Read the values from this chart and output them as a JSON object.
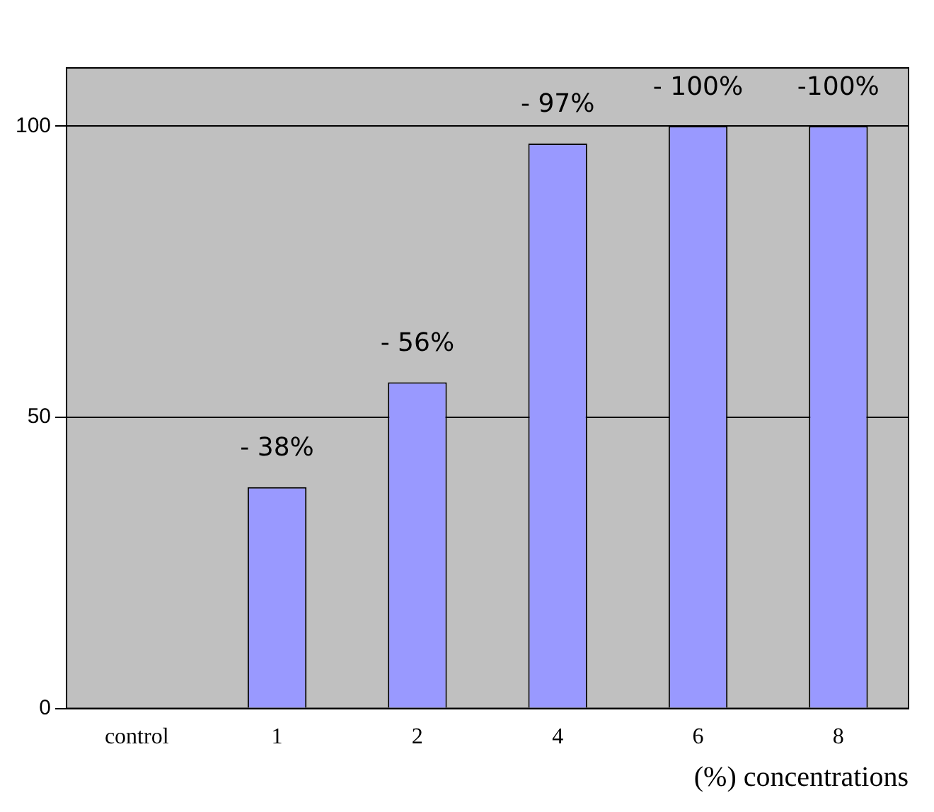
{
  "chart_data": {
    "type": "bar",
    "xlabel": "(%) concentrations",
    "categories": [
      "control",
      "1",
      "2",
      "4",
      "6",
      "8"
    ],
    "values": [
      0,
      38,
      56,
      97,
      100,
      100
    ],
    "colors": [
      "#cc0000",
      "#9999ff",
      "#9999ff",
      "#9999ff",
      "#9999ff",
      "#9999ff"
    ],
    "annotations": [
      {
        "text": "- 38%",
        "x": "1",
        "y": 38
      },
      {
        "text": "- 56%",
        "x": "2",
        "y": 56
      },
      {
        "text": "- 97%",
        "x": "4",
        "y": 97
      },
      {
        "text": "- 100%",
        "x": "6",
        "y": 100
      },
      {
        "text": "-100%",
        "x": "8",
        "y": 100
      }
    ],
    "ylim": [
      0,
      110
    ],
    "yticks": [
      0,
      50,
      100
    ],
    "grid": "y"
  }
}
